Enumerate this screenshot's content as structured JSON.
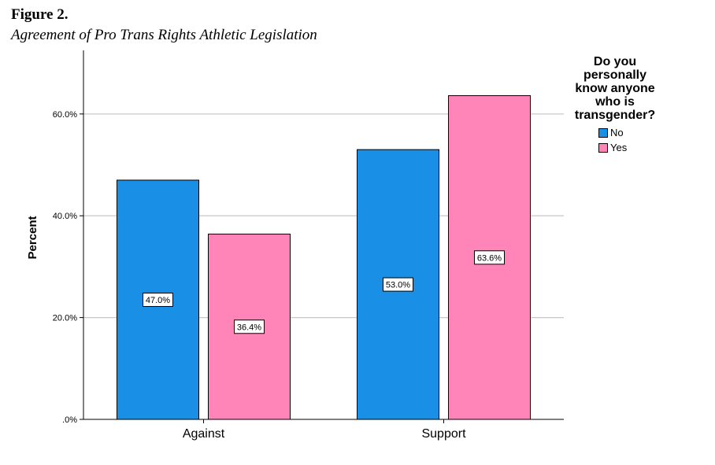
{
  "figure": {
    "label": "Figure 2.",
    "title": "Agreement of Pro Trans Rights Athletic Legislation"
  },
  "chart_data": {
    "type": "bar",
    "categories": [
      "Against",
      "Support"
    ],
    "series": [
      {
        "name": "No",
        "values": [
          47.0,
          53.0
        ],
        "labels": [
          "47.0%",
          "53.0%"
        ],
        "color": "#1a8fe6"
      },
      {
        "name": "Yes",
        "values": [
          36.4,
          63.6
        ],
        "labels": [
          "36.4%",
          "63.6%"
        ],
        "color": "#ff85b8"
      }
    ],
    "ylabel": "Percent",
    "xlabel": "",
    "ylim": [
      0,
      72.5
    ],
    "yticks": [
      0,
      20,
      40,
      60
    ],
    "ytick_labels": [
      ".0%",
      "20.0%",
      "40.0%",
      "60.0%"
    ],
    "grid": true,
    "legend": {
      "title": "Do you personally know anyone who is transgender?",
      "title_lines": [
        "Do you",
        "personally",
        "know anyone",
        "who is",
        "transgender?"
      ],
      "placement": "right"
    }
  }
}
